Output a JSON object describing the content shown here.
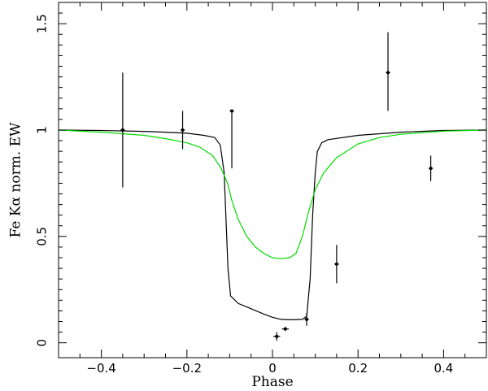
{
  "chart_data": {
    "type": "scatter",
    "title": "",
    "xlabel": "Phase",
    "ylabel": "Fe Kα  norm. EW",
    "xlim": [
      -0.5,
      0.5
    ],
    "ylim": [
      -0.07,
      1.6
    ],
    "grid": false,
    "legend": "none",
    "x_ticks": [
      -0.4,
      -0.2,
      0,
      0.2,
      0.4
    ],
    "x_tick_labels": [
      "−0.4",
      "−0.2",
      "0",
      "0.2",
      "0.4"
    ],
    "y_ticks": [
      0,
      0.5,
      1,
      1.5
    ],
    "y_tick_labels": [
      "0",
      "0.5",
      "1",
      "1.5"
    ],
    "points": [
      {
        "x": -0.35,
        "y": 1.0,
        "ylo": 0.73,
        "yhi": 1.27,
        "xerr": 0.005
      },
      {
        "x": -0.21,
        "y": 1.0,
        "ylo": 0.91,
        "yhi": 1.09,
        "xerr": 0.005
      },
      {
        "x": -0.095,
        "y": 1.09,
        "ylo": 0.82,
        "yhi": 1.09,
        "xerr": 0.005
      },
      {
        "x": 0.01,
        "y": 0.03,
        "ylo": 0.01,
        "yhi": 0.05,
        "xerr": 0.008
      },
      {
        "x": 0.03,
        "y": 0.065,
        "ylo": 0.055,
        "yhi": 0.075,
        "xerr": 0.008
      },
      {
        "x": 0.08,
        "y": 0.11,
        "ylo": 0.08,
        "yhi": 0.14,
        "xerr": 0.005
      },
      {
        "x": 0.15,
        "y": 0.37,
        "ylo": 0.28,
        "yhi": 0.46,
        "xerr": 0.005
      },
      {
        "x": 0.27,
        "y": 1.27,
        "ylo": 1.09,
        "yhi": 1.46,
        "xerr": 0.005
      },
      {
        "x": 0.37,
        "y": 0.82,
        "ylo": 0.76,
        "yhi": 0.88,
        "xerr": 0.005
      }
    ],
    "curves": [
      {
        "color": "#000000",
        "points": [
          [
            -0.5,
            1.0
          ],
          [
            -0.4,
            0.998
          ],
          [
            -0.3,
            0.994
          ],
          [
            -0.25,
            0.99
          ],
          [
            -0.2,
            0.985
          ],
          [
            -0.16,
            0.975
          ],
          [
            -0.135,
            0.965
          ],
          [
            -0.122,
            0.93
          ],
          [
            -0.113,
            0.8
          ],
          [
            -0.108,
            0.55
          ],
          [
            -0.104,
            0.35
          ],
          [
            -0.098,
            0.22
          ],
          [
            -0.08,
            0.185
          ],
          [
            -0.05,
            0.16
          ],
          [
            -0.02,
            0.135
          ],
          [
            0.0,
            0.12
          ],
          [
            0.02,
            0.11
          ],
          [
            0.045,
            0.108
          ],
          [
            0.07,
            0.11
          ],
          [
            0.08,
            0.125
          ],
          [
            0.088,
            0.3
          ],
          [
            0.094,
            0.6
          ],
          [
            0.1,
            0.8
          ],
          [
            0.105,
            0.9
          ],
          [
            0.115,
            0.94
          ],
          [
            0.13,
            0.955
          ],
          [
            0.2,
            0.975
          ],
          [
            0.3,
            0.99
          ],
          [
            0.4,
            0.998
          ],
          [
            0.5,
            1.0
          ]
        ]
      },
      {
        "color": "#00dd00",
        "points": [
          [
            -0.5,
            1.0
          ],
          [
            -0.4,
            0.99
          ],
          [
            -0.3,
            0.975
          ],
          [
            -0.25,
            0.96
          ],
          [
            -0.2,
            0.94
          ],
          [
            -0.17,
            0.92
          ],
          [
            -0.14,
            0.88
          ],
          [
            -0.12,
            0.82
          ],
          [
            -0.105,
            0.75
          ],
          [
            -0.095,
            0.67
          ],
          [
            -0.08,
            0.58
          ],
          [
            -0.06,
            0.5
          ],
          [
            -0.04,
            0.45
          ],
          [
            -0.02,
            0.42
          ],
          [
            0.0,
            0.4
          ],
          [
            0.02,
            0.395
          ],
          [
            0.04,
            0.4
          ],
          [
            0.055,
            0.42
          ],
          [
            0.07,
            0.5
          ],
          [
            0.085,
            0.62
          ],
          [
            0.1,
            0.72
          ],
          [
            0.12,
            0.8
          ],
          [
            0.15,
            0.87
          ],
          [
            0.2,
            0.935
          ],
          [
            0.25,
            0.965
          ],
          [
            0.3,
            0.98
          ],
          [
            0.4,
            0.995
          ],
          [
            0.5,
            1.0
          ]
        ]
      }
    ]
  }
}
